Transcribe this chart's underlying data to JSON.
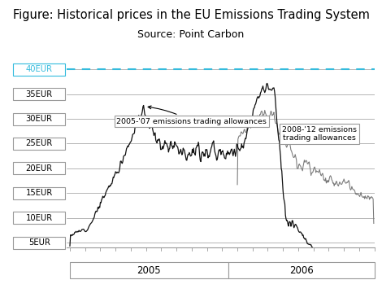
{
  "title": "Figure: Historical prices in the EU Emissions Trading System",
  "subtitle": "Source: Point Carbon",
  "title_fontsize": 10.5,
  "subtitle_fontsize": 9,
  "ylabel_ticks": [
    "5EUR",
    "10EUR",
    "15EUR",
    "20EUR",
    "25EUR",
    "30EUR",
    "35EUR"
  ],
  "ytick_vals": [
    5,
    10,
    15,
    20,
    25,
    30,
    35
  ],
  "ylim": [
    4,
    41
  ],
  "dashed_line_y": 40,
  "dashed_line_color": "#33BBDD",
  "annotation1_text": "2005-'07 emissions trading allowances",
  "annotation2_text": "2008-'12 emissions\ntrading allowances",
  "xtick_labels": [
    "2005",
    "2006"
  ],
  "background_color": "#ffffff",
  "line1_color": "#111111",
  "line2_color": "#777777",
  "grid_color": "#999999",
  "box_edge_color": "#999999",
  "blue_box_color": "#33BBDD"
}
